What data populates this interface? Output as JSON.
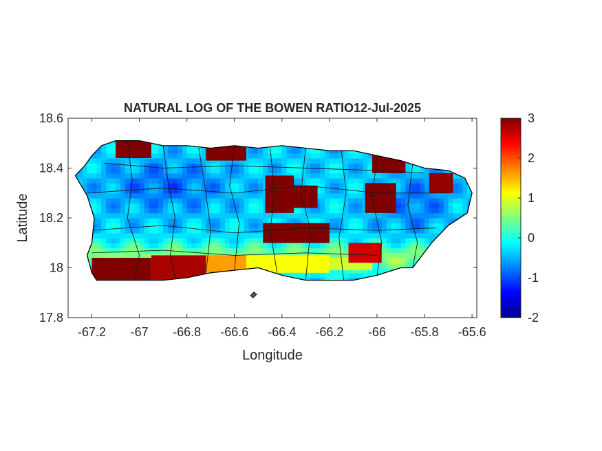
{
  "chart_data": {
    "type": "heatmap",
    "title": "NATURAL LOG OF THE BOWEN RATIO12-Jul-2025",
    "xlabel": "Longitude",
    "ylabel": "Latitude",
    "xlim": [
      -67.3,
      -65.58
    ],
    "ylim": [
      17.8,
      18.6
    ],
    "xticks": [
      -67.2,
      -67,
      -66.8,
      -66.6,
      -66.4,
      -66.2,
      -66,
      -65.8,
      -65.6
    ],
    "xtick_labels": [
      "-67.2",
      "-67",
      "-66.8",
      "-66.6",
      "-66.4",
      "-66.2",
      "-66",
      "-65.8",
      "-65.6"
    ],
    "yticks": [
      17.8,
      18,
      18.2,
      18.4,
      18.6
    ],
    "ytick_labels": [
      "17.8",
      "18",
      "18.2",
      "18.4",
      "18.6"
    ],
    "colorbar": {
      "colormap": "jet",
      "clim": [
        -2,
        3
      ],
      "ticks": [
        -2,
        -1,
        0,
        1,
        2,
        3
      ],
      "tick_labels": [
        "-2",
        "-1",
        "0",
        "1",
        "2",
        "3"
      ]
    },
    "grid": false,
    "island_outline": [
      [
        -67.27,
        18.37
      ],
      [
        -67.23,
        18.41
      ],
      [
        -67.2,
        18.45
      ],
      [
        -67.16,
        18.49
      ],
      [
        -67.1,
        18.51
      ],
      [
        -67.0,
        18.51
      ],
      [
        -66.9,
        18.49
      ],
      [
        -66.8,
        18.49
      ],
      [
        -66.7,
        18.48
      ],
      [
        -66.6,
        18.49
      ],
      [
        -66.5,
        18.48
      ],
      [
        -66.4,
        18.49
      ],
      [
        -66.3,
        18.48
      ],
      [
        -66.2,
        18.47
      ],
      [
        -66.1,
        18.47
      ],
      [
        -66.0,
        18.45
      ],
      [
        -65.9,
        18.43
      ],
      [
        -65.8,
        18.4
      ],
      [
        -65.7,
        18.39
      ],
      [
        -65.63,
        18.36
      ],
      [
        -65.6,
        18.3
      ],
      [
        -65.62,
        18.22
      ],
      [
        -65.7,
        18.17
      ],
      [
        -65.77,
        18.1
      ],
      [
        -65.85,
        18.0
      ],
      [
        -65.9,
        18.0
      ],
      [
        -66.0,
        17.97
      ],
      [
        -66.1,
        17.95
      ],
      [
        -66.2,
        17.95
      ],
      [
        -66.3,
        17.95
      ],
      [
        -66.4,
        17.97
      ],
      [
        -66.5,
        18.0
      ],
      [
        -66.6,
        17.99
      ],
      [
        -66.7,
        17.98
      ],
      [
        -66.8,
        17.96
      ],
      [
        -66.9,
        17.95
      ],
      [
        -67.0,
        17.95
      ],
      [
        -67.1,
        17.95
      ],
      [
        -67.18,
        17.95
      ],
      [
        -67.2,
        17.98
      ],
      [
        -67.22,
        18.05
      ],
      [
        -67.2,
        18.1
      ],
      [
        -67.19,
        18.2
      ],
      [
        -67.22,
        18.29
      ],
      [
        -67.27,
        18.37
      ]
    ],
    "field_zones": [
      {
        "lon": [
          -67.2,
          -66.95
        ],
        "lat": [
          17.93,
          18.04
        ],
        "value": 3
      },
      {
        "lon": [
          -66.95,
          -66.72
        ],
        "lat": [
          17.95,
          18.05
        ],
        "value": 2.8
      },
      {
        "lon": [
          -66.72,
          -66.55
        ],
        "lat": [
          17.98,
          18.05
        ],
        "value": 1.6
      },
      {
        "lon": [
          -66.55,
          -66.2
        ],
        "lat": [
          17.98,
          18.05
        ],
        "value": 1.1
      },
      {
        "lon": [
          -66.2,
          -66.02
        ],
        "lat": [
          17.99,
          18.04
        ],
        "value": 0.9
      },
      {
        "lon": [
          -67.1,
          -66.95
        ],
        "lat": [
          18.44,
          18.51
        ],
        "value": 3
      },
      {
        "lon": [
          -66.72,
          -66.55
        ],
        "lat": [
          18.43,
          18.49
        ],
        "value": 3
      },
      {
        "lon": [
          -66.47,
          -66.35
        ],
        "lat": [
          18.22,
          18.37
        ],
        "value": 3
      },
      {
        "lon": [
          -66.35,
          -66.25
        ],
        "lat": [
          18.24,
          18.33
        ],
        "value": 3
      },
      {
        "lon": [
          -66.48,
          -66.2
        ],
        "lat": [
          18.1,
          18.18
        ],
        "value": 3
      },
      {
        "lon": [
          -66.05,
          -65.92
        ],
        "lat": [
          18.22,
          18.34
        ],
        "value": 3
      },
      {
        "lon": [
          -66.02,
          -65.88
        ],
        "lat": [
          18.38,
          18.46
        ],
        "value": 3
      },
      {
        "lon": [
          -65.78,
          -65.68
        ],
        "lat": [
          18.3,
          18.38
        ],
        "value": 2.9
      },
      {
        "lon": [
          -66.12,
          -65.98
        ],
        "lat": [
          18.02,
          18.1
        ],
        "value": 2.6
      }
    ]
  }
}
